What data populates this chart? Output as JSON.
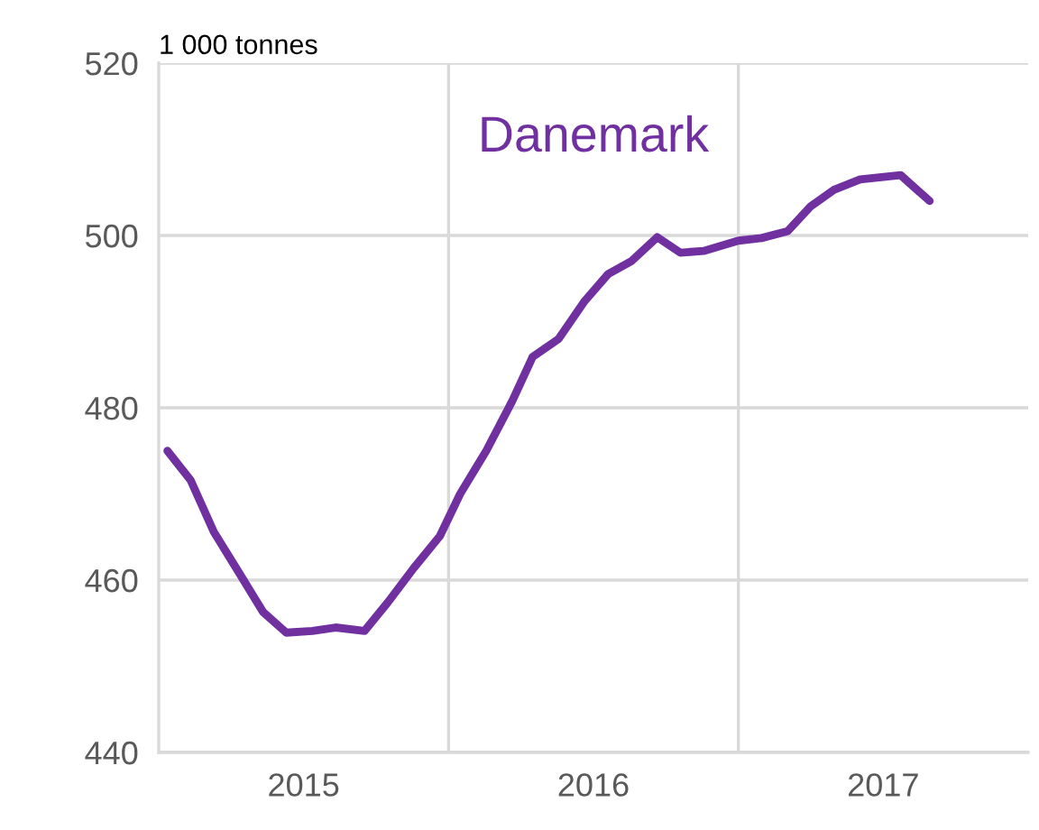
{
  "chart_data": {
    "type": "line",
    "title": "Danemark",
    "ylabel": "1 000 tonnes",
    "x": [
      2014.53,
      2014.61,
      2014.69,
      2014.78,
      2014.86,
      2014.94,
      2015.03,
      2015.11,
      2015.21,
      2015.29,
      2015.38,
      2015.47,
      2015.54,
      2015.63,
      2015.72,
      2015.79,
      2015.88,
      2015.97,
      2016.05,
      2016.13,
      2016.22,
      2016.3,
      2016.38,
      2016.5,
      2016.58,
      2016.67,
      2016.75,
      2016.83,
      2016.92,
      2017.06,
      2017.16
    ],
    "series": [
      {
        "color": "#7030a0",
        "values": [
          475.0,
          471.6,
          465.6,
          460.7,
          456.3,
          453.9,
          454.1,
          454.5,
          454.1,
          457.4,
          461.4,
          465.1,
          470.0,
          475.0,
          480.8,
          485.9,
          488.0,
          492.4,
          495.5,
          497.0,
          499.8,
          498.0,
          498.2,
          499.4,
          499.7,
          500.5,
          503.4,
          505.3,
          506.5,
          507.0,
          504.0
        ]
      }
    ],
    "xlim": [
      2014.5,
      2017.5
    ],
    "xticks": [
      2015,
      2016,
      2017
    ],
    "ylim": [
      440,
      520
    ],
    "yticks": [
      440,
      460,
      480,
      500,
      520
    ],
    "grid": "y",
    "ref_lines": [
      {
        "axis": "x",
        "value": 2015.5,
        "color": "#d9d9d9"
      },
      {
        "axis": "x",
        "value": 2016.5,
        "color": "#d9d9d9"
      }
    ],
    "line_style": "solid",
    "marker": "none",
    "legend": false
  }
}
